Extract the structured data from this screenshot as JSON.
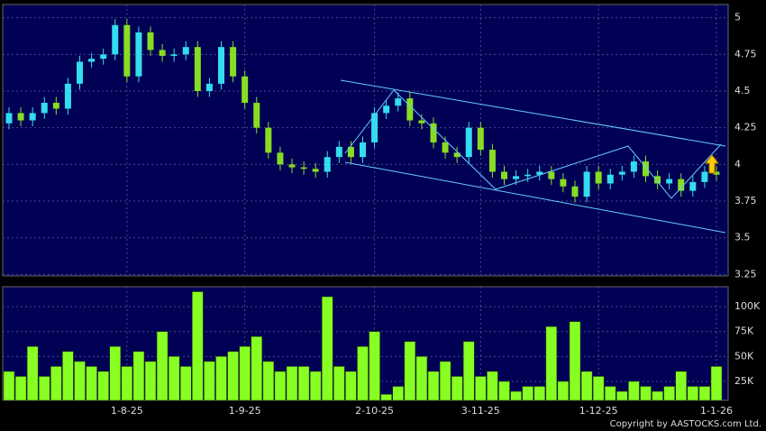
{
  "chart_data": {
    "type": "candlestick",
    "categories": [
      null,
      null,
      null,
      null,
      null,
      null,
      null,
      null,
      null,
      null,
      "1-8-25",
      null,
      null,
      null,
      null,
      null,
      null,
      null,
      null,
      null,
      "1-9-25",
      null,
      null,
      null,
      null,
      null,
      null,
      null,
      null,
      null,
      null,
      "2-10-25",
      null,
      null,
      null,
      null,
      null,
      null,
      null,
      null,
      "3-11-25",
      null,
      null,
      null,
      null,
      null,
      null,
      null,
      null,
      null,
      "1-12-25",
      null,
      null,
      null,
      null,
      null,
      null,
      null,
      null,
      null,
      "1-1-26"
    ],
    "open": [
      4.28,
      4.35,
      4.3,
      4.35,
      4.42,
      4.38,
      4.55,
      4.7,
      4.72,
      4.75,
      4.95,
      4.6,
      4.9,
      4.78,
      4.74,
      4.75,
      4.8,
      4.5,
      4.55,
      4.8,
      4.6,
      4.42,
      4.25,
      4.08,
      4.0,
      3.98,
      3.97,
      3.95,
      4.05,
      4.12,
      4.05,
      4.15,
      4.35,
      4.4,
      4.45,
      4.3,
      4.28,
      4.15,
      4.08,
      4.05,
      4.25,
      4.1,
      3.95,
      3.9,
      3.92,
      3.93,
      3.95,
      3.9,
      3.85,
      3.78,
      3.95,
      3.87,
      3.93,
      3.95,
      4.02,
      3.92,
      3.87,
      3.9,
      3.82,
      3.88,
      3.95
    ],
    "high": [
      4.39,
      4.39,
      4.39,
      4.46,
      4.46,
      4.59,
      4.74,
      4.76,
      4.79,
      4.99,
      4.99,
      4.94,
      4.94,
      4.82,
      4.79,
      4.84,
      4.84,
      4.59,
      4.84,
      4.84,
      4.64,
      4.46,
      4.29,
      4.12,
      4.04,
      4.02,
      4.01,
      4.09,
      4.16,
      4.16,
      4.19,
      4.39,
      4.44,
      4.49,
      4.49,
      4.34,
      4.32,
      4.19,
      4.12,
      4.29,
      4.29,
      4.14,
      3.99,
      3.96,
      3.97,
      3.99,
      3.99,
      3.94,
      3.89,
      3.99,
      3.99,
      3.97,
      3.99,
      4.06,
      4.06,
      3.96,
      3.94,
      3.94,
      3.92,
      3.99,
      3.99
    ],
    "low": [
      4.24,
      4.26,
      4.26,
      4.31,
      4.34,
      4.34,
      4.51,
      4.66,
      4.68,
      4.71,
      4.56,
      4.56,
      4.74,
      4.7,
      4.7,
      4.71,
      4.46,
      4.46,
      4.51,
      4.56,
      4.38,
      4.21,
      4.04,
      3.96,
      3.94,
      3.93,
      3.91,
      3.91,
      4.01,
      4.01,
      4.01,
      4.11,
      4.31,
      4.36,
      4.26,
      4.24,
      4.11,
      4.04,
      4.01,
      4.01,
      4.06,
      3.91,
      3.86,
      3.86,
      3.88,
      3.89,
      3.86,
      3.81,
      3.74,
      3.74,
      3.83,
      3.83,
      3.89,
      3.91,
      3.88,
      3.83,
      3.83,
      3.78,
      3.78,
      3.84,
      3.89
    ],
    "close": [
      4.35,
      4.3,
      4.35,
      4.42,
      4.38,
      4.55,
      4.7,
      4.72,
      4.75,
      4.95,
      4.6,
      4.9,
      4.78,
      4.74,
      4.75,
      4.8,
      4.5,
      4.55,
      4.8,
      4.6,
      4.42,
      4.25,
      4.08,
      4.0,
      3.98,
      3.97,
      3.95,
      4.05,
      4.12,
      4.05,
      4.15,
      4.35,
      4.4,
      4.45,
      4.3,
      4.28,
      4.15,
      4.08,
      4.05,
      4.25,
      4.1,
      3.95,
      3.9,
      3.92,
      3.93,
      3.95,
      3.9,
      3.85,
      3.78,
      3.95,
      3.87,
      3.93,
      3.95,
      4.02,
      3.92,
      3.87,
      3.9,
      3.82,
      3.88,
      3.95,
      3.93
    ],
    "up_color": "#33ddee",
    "down_color": "#88dd22",
    "ylim": [
      3.24,
      5.09
    ],
    "yticks": [
      3.25,
      3.5,
      3.75,
      4,
      4.25,
      4.5,
      4.75,
      5
    ],
    "volume": [
      35000,
      30000,
      60000,
      30000,
      40000,
      55000,
      45000,
      40000,
      35000,
      60000,
      40000,
      55000,
      45000,
      75000,
      50000,
      40000,
      115000,
      45000,
      50000,
      55000,
      60000,
      70000,
      45000,
      35000,
      40000,
      40000,
      35000,
      110000,
      40000,
      35000,
      60000,
      75000,
      12000,
      20000,
      65000,
      50000,
      35000,
      45000,
      30000,
      65000,
      30000,
      35000,
      25000,
      15000,
      20000,
      20000,
      80000,
      25000,
      85000,
      35000,
      30000,
      20000,
      15000,
      25000,
      20000,
      15000,
      20000,
      35000,
      20000,
      20000,
      40000
    ],
    "volume_color": "#88ff22",
    "y2lim": [
      6000,
      120000
    ],
    "y2ticks": [
      {
        "value": 25000,
        "label": "25K"
      },
      {
        "value": 50000,
        "label": "50K"
      },
      {
        "value": 75000,
        "label": "75K"
      },
      {
        "value": 100000,
        "label": "100K"
      }
    ],
    "grid": true,
    "footer": "Copyright by AASTOCKS.com Ltd."
  }
}
